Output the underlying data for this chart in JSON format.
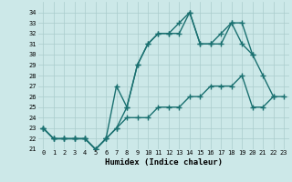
{
  "title": "",
  "xlabel": "Humidex (Indice chaleur)",
  "ylabel": "",
  "background_color": "#cce8e8",
  "grid_color": "#aacccc",
  "line_color": "#1a7070",
  "xlim": [
    -0.5,
    23.5
  ],
  "ylim": [
    21,
    35
  ],
  "yticks": [
    21,
    22,
    23,
    24,
    25,
    26,
    27,
    28,
    29,
    30,
    31,
    32,
    33,
    34
  ],
  "xticks": [
    0,
    1,
    2,
    3,
    4,
    5,
    6,
    7,
    8,
    9,
    10,
    11,
    12,
    13,
    14,
    15,
    16,
    17,
    18,
    19,
    20,
    21,
    22,
    23
  ],
  "series": [
    [
      23,
      22,
      22,
      22,
      22,
      21,
      22,
      27,
      25,
      29,
      31,
      32,
      32,
      32,
      34,
      31,
      31,
      31,
      33,
      33,
      30,
      28,
      26,
      null
    ],
    [
      23,
      22,
      22,
      22,
      22,
      21,
      22,
      23,
      25,
      29,
      31,
      32,
      32,
      33,
      34,
      31,
      31,
      32,
      33,
      31,
      30,
      null,
      null,
      null
    ],
    [
      23,
      22,
      22,
      22,
      22,
      21,
      22,
      23,
      24,
      24,
      24,
      25,
      25,
      25,
      26,
      26,
      27,
      27,
      27,
      28,
      25,
      25,
      26,
      26
    ]
  ],
  "marker": "+",
  "markersize": 4,
  "linewidth": 1.0,
  "markeredgewidth": 1.0
}
